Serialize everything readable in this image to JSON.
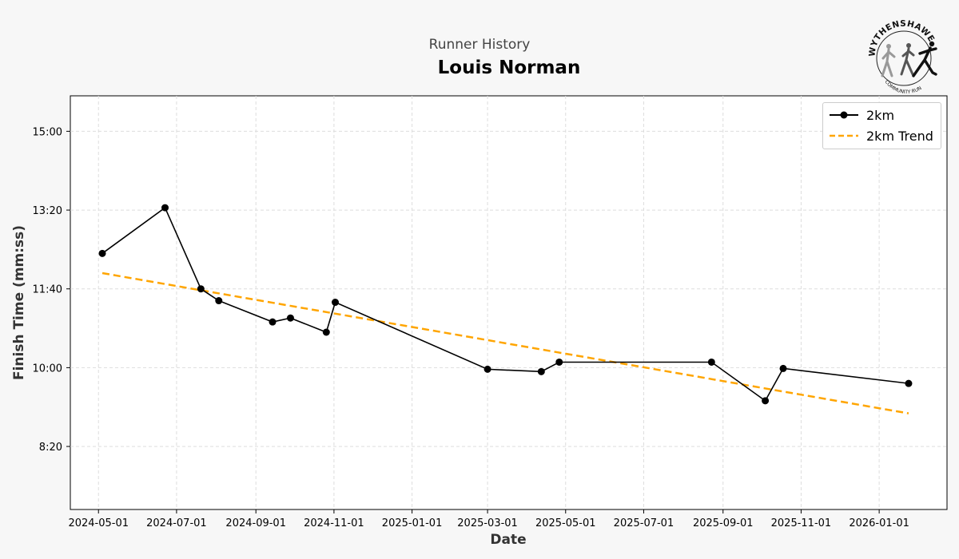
{
  "header": {
    "subtitle": "Runner History",
    "runner_name": "Louis Norman"
  },
  "logo": {
    "text_top": "WYTHENSHAWE",
    "text_bottom": "COMMUNITY RUN"
  },
  "chart_data": {
    "type": "line",
    "xlabel": "Date",
    "ylabel": "Finish Time (mm:ss)",
    "x_ticks": [
      "2024-05-01",
      "2024-07-01",
      "2024-09-01",
      "2024-11-01",
      "2025-01-01",
      "2025-03-01",
      "2025-05-01",
      "2025-07-01",
      "2025-09-01",
      "2025-11-01",
      "2026-01-01"
    ],
    "y_ticks": [
      "8:20",
      "10:00",
      "11:40",
      "13:20",
      "15:00"
    ],
    "xlim": [
      "2024-04-09",
      "2026-02-23"
    ],
    "ylim": [
      "7:00",
      "15:45"
    ],
    "grid": true,
    "legend_position": "top-right",
    "series": [
      {
        "name": "2km",
        "color": "#000000",
        "style": "solid-with-markers",
        "x": [
          "2024-05-04",
          "2024-06-22",
          "2024-07-20",
          "2024-08-03",
          "2024-09-14",
          "2024-09-28",
          "2024-10-26",
          "2024-11-02",
          "2025-03-01",
          "2025-04-12",
          "2025-04-26",
          "2025-08-23",
          "2025-10-04",
          "2025-10-18",
          "2026-01-24"
        ],
        "y": [
          "12:25",
          "13:23",
          "11:40",
          "11:25",
          "10:58",
          "11:03",
          "10:45",
          "11:23",
          "9:58",
          "9:55",
          "10:07",
          "10:07",
          "9:18",
          "9:59",
          "9:40"
        ]
      },
      {
        "name": "2km Trend",
        "color": "#FFA500",
        "style": "dashed",
        "x": [
          "2024-05-04",
          "2026-01-24"
        ],
        "y": [
          "12:00",
          "9:02"
        ]
      }
    ]
  }
}
